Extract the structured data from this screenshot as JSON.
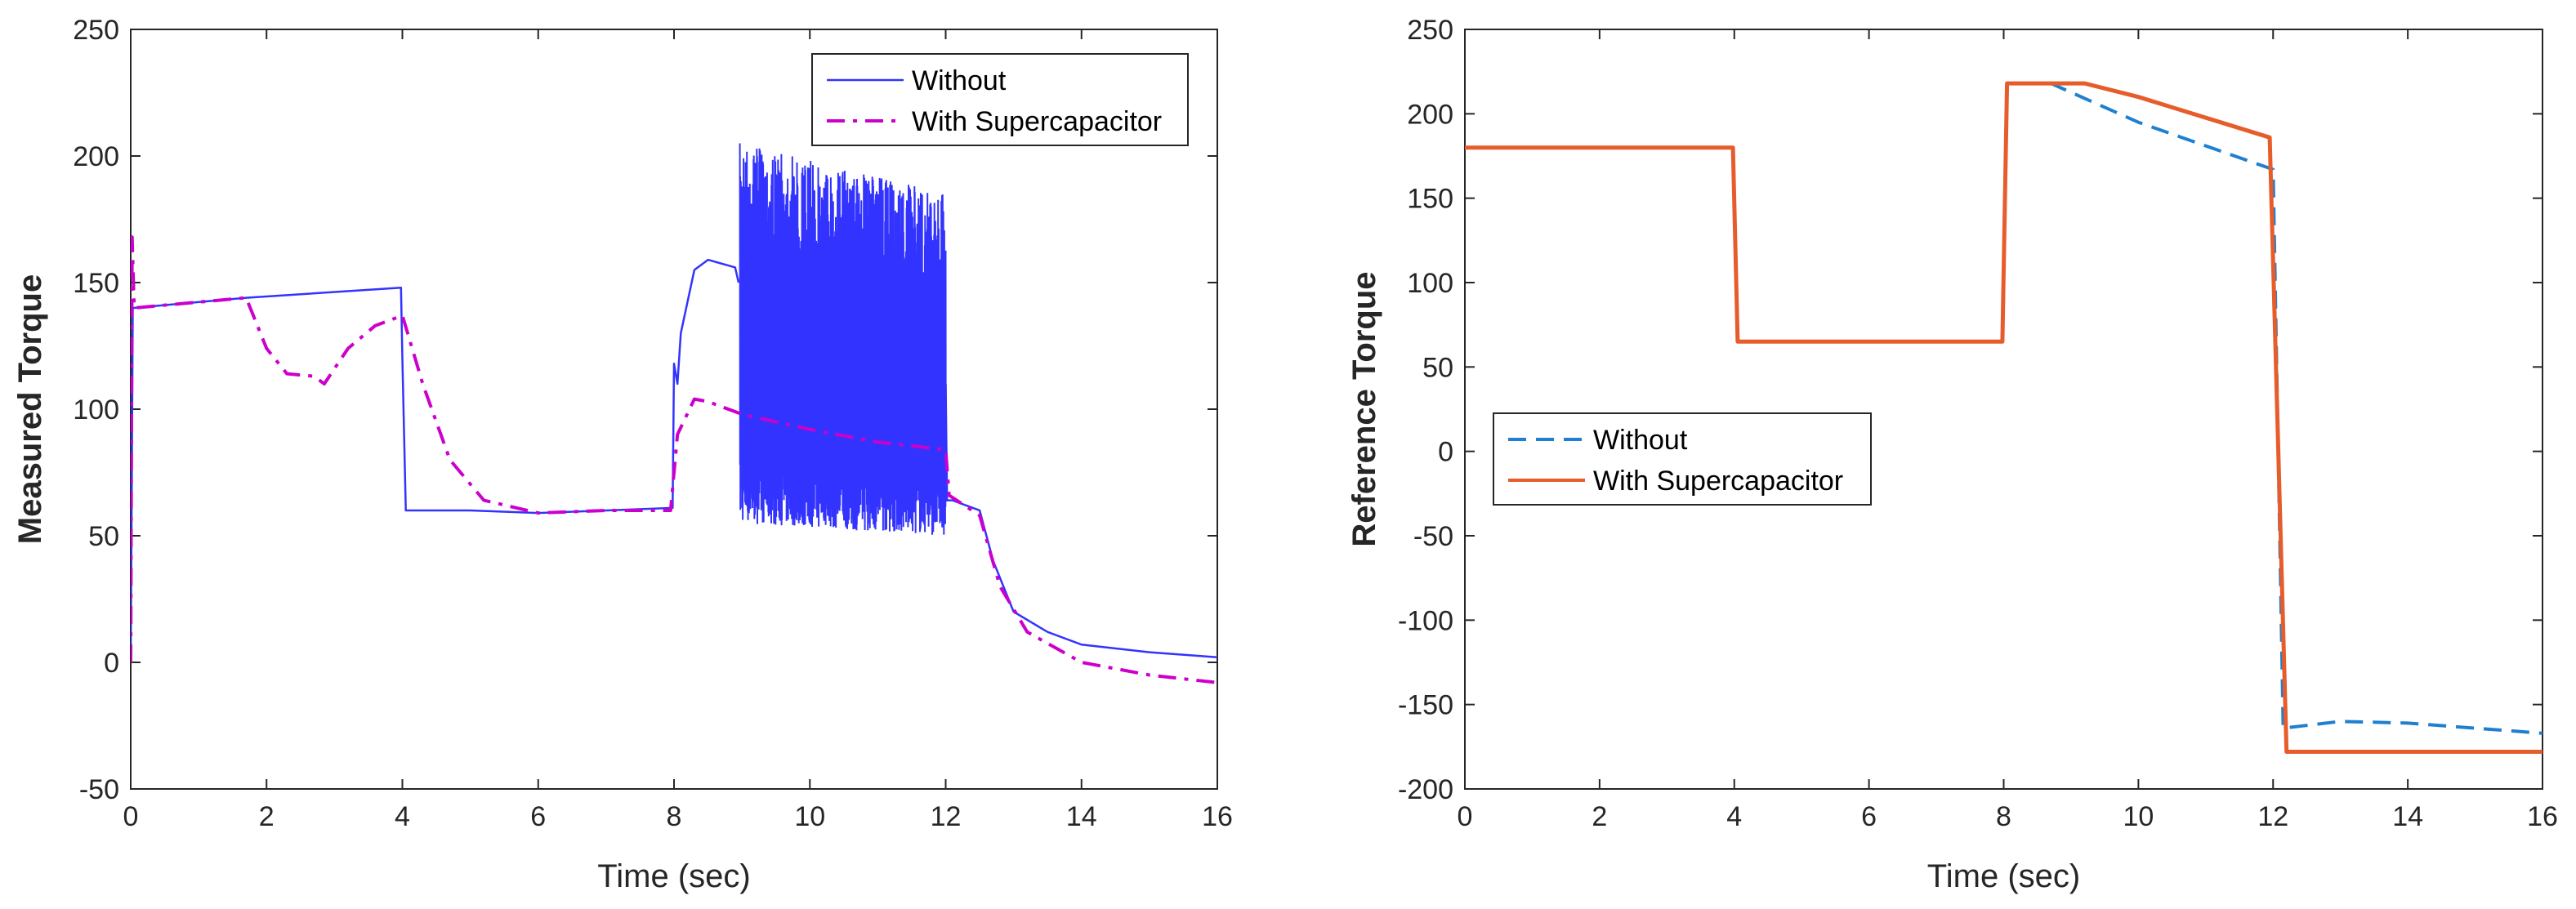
{
  "chart_data": [
    {
      "type": "line",
      "xlabel": "Time (sec)",
      "ylabel": "Measured Torque",
      "xlim": [
        0,
        16
      ],
      "ylim": [
        -50,
        250
      ],
      "xticks": [
        "0",
        "2",
        "4",
        "6",
        "8",
        "10",
        "12",
        "14",
        "16"
      ],
      "yticks": [
        "-50",
        "0",
        "50",
        "100",
        "150",
        "200",
        "250"
      ],
      "legend_position": "top-right",
      "series": [
        {
          "name": "Without",
          "style": "solid",
          "color": "#3333ff",
          "x": [
            0,
            0.03,
            0.05,
            1.7,
            3.98,
            4.0,
            4.05,
            5.0,
            6.0,
            7.0,
            7.98,
            8.0,
            8.05,
            8.1,
            8.3,
            8.5,
            8.9,
            8.95
          ],
          "y": [
            0,
            140,
            140,
            144,
            148,
            120,
            60,
            60,
            59,
            60,
            61,
            118,
            110,
            130,
            155,
            159,
            156,
            150
          ],
          "oscillation": {
            "x_start": 8.97,
            "x_end": 12.0,
            "upper": [
              205,
              185
            ],
            "lower": [
              55,
              50
            ]
          },
          "tail_x": [
            12.02,
            12.1,
            12.3,
            12.5,
            12.7,
            13.0,
            13.5,
            14.0,
            15.0,
            16.0
          ],
          "tail_y": [
            64,
            64,
            62,
            60,
            40,
            20,
            12,
            7,
            4,
            2
          ]
        },
        {
          "name": "With Supercapacitor",
          "style": "dashdot",
          "color": "#cc00cc",
          "x": [
            0,
            0.02,
            0.05,
            1.7,
            2.0,
            2.3,
            2.7,
            2.85,
            3.2,
            3.6,
            4.0,
            4.3,
            4.7,
            5.2,
            6.0,
            7.0,
            7.95,
            8.05,
            8.3,
            8.5,
            9.0,
            10.0,
            11.0,
            12.0,
            12.05,
            12.5,
            12.8,
            13.2,
            14.0,
            15.0,
            16.0
          ],
          "y": [
            0,
            168,
            140,
            144,
            124,
            114,
            113,
            110,
            124,
            133,
            137,
            110,
            80,
            64,
            59,
            60,
            60,
            90,
            104,
            103,
            98,
            92,
            87,
            84,
            66,
            58,
            30,
            12,
            0,
            -5,
            -8
          ]
        }
      ]
    },
    {
      "type": "line",
      "xlabel": "Time (sec)",
      "ylabel": "Reference Torque",
      "xlim": [
        0,
        16
      ],
      "ylim": [
        -200,
        250
      ],
      "xticks": [
        "0",
        "2",
        "4",
        "6",
        "8",
        "10",
        "12",
        "14",
        "16"
      ],
      "yticks": [
        "-200",
        "-150",
        "-100",
        "-50",
        "0",
        "50",
        "100",
        "150",
        "200",
        "250"
      ],
      "legend_position": "center-left",
      "series": [
        {
          "name": "Without",
          "style": "dashed",
          "color": "#1f7fd0",
          "x": [
            0,
            3.98,
            4.05,
            7.98,
            8.05,
            8.7,
            10.0,
            12.0,
            12.15,
            13.0,
            14.0,
            15.0,
            16.0
          ],
          "y": [
            180,
            180,
            65,
            65,
            218,
            218,
            195,
            167,
            -164,
            -160,
            -161,
            -164,
            -167
          ]
        },
        {
          "name": "With Supercapacitor",
          "style": "solid",
          "color": "#e65c2b",
          "x": [
            0,
            3.98,
            4.05,
            7.98,
            8.05,
            9.2,
            10.0,
            11.95,
            12.2,
            16.0
          ],
          "y": [
            180,
            180,
            65,
            65,
            218,
            218,
            210,
            186,
            -178,
            -178
          ]
        }
      ]
    }
  ]
}
